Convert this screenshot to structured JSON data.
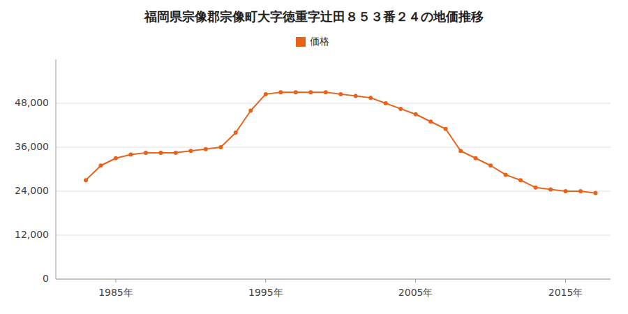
{
  "chart_data": {
    "type": "line",
    "title": "福岡県宗像郡宗像町大字徳重字辻田８５３番２４の地価推移",
    "x": [
      1983,
      1984,
      1985,
      1986,
      1987,
      1988,
      1989,
      1990,
      1991,
      1992,
      1993,
      1994,
      1995,
      1996,
      1997,
      1998,
      1999,
      2000,
      2001,
      2002,
      2003,
      2004,
      2005,
      2006,
      2007,
      2008,
      2009,
      2010,
      2011,
      2012,
      2013,
      2014,
      2015,
      2016,
      2017
    ],
    "series": [
      {
        "name": "価格",
        "color": "#e8621a",
        "marker": "circle",
        "line_style": "solid",
        "values": [
          27000,
          31000,
          33000,
          34000,
          34500,
          34500,
          34500,
          35000,
          35500,
          36000,
          40000,
          46000,
          50500,
          51000,
          51000,
          51000,
          51000,
          50500,
          50000,
          49500,
          48000,
          46500,
          45000,
          43000,
          41000,
          35000,
          33000,
          31000,
          28500,
          27000,
          25000,
          24500,
          24000,
          24000,
          23500
        ]
      }
    ],
    "xlim": [
      1981,
      2018
    ],
    "xticks": [
      {
        "value": 1985,
        "label": "1985年"
      },
      {
        "value": 1995,
        "label": "1995年"
      },
      {
        "value": 2005,
        "label": "2005年"
      },
      {
        "value": 2015,
        "label": "2015年"
      }
    ],
    "ylim": [
      0,
      60000
    ],
    "yticks": [
      0,
      {
        "value": 12000,
        "label": "12,000"
      },
      {
        "value": 24000,
        "label": "24,000"
      },
      {
        "value": 36000,
        "label": "36,000"
      },
      {
        "value": 48000,
        "label": "48,000"
      }
    ],
    "grid": true,
    "legend": "top"
  }
}
